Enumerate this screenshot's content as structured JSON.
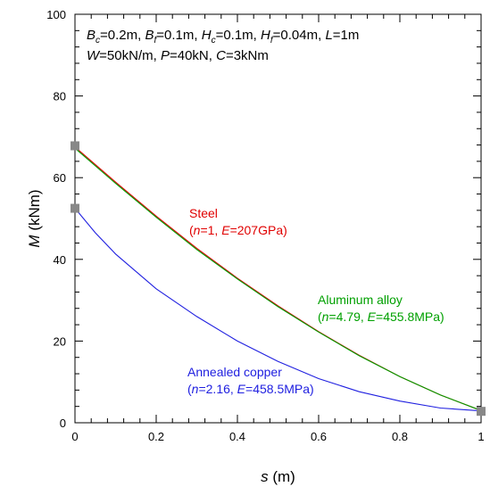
{
  "chart_data": {
    "type": "line",
    "xlabel": {
      "symbol": "s",
      "unit": "(m)"
    },
    "ylabel": {
      "symbol": "M",
      "unit": "(kNm)"
    },
    "xlim": [
      0,
      1
    ],
    "ylim": [
      0,
      100
    ],
    "x_ticks": [
      0,
      0.2,
      0.4,
      0.6,
      0.8,
      1
    ],
    "x_tick_labels": [
      "0",
      "0.2",
      "0.4",
      "0.6",
      "0.8",
      "1"
    ],
    "x_minor_ticks": [
      0.04,
      0.08,
      0.12,
      0.16,
      0.24,
      0.28,
      0.32,
      0.36,
      0.44,
      0.48,
      0.52,
      0.56,
      0.64,
      0.68,
      0.72,
      0.76,
      0.84,
      0.88,
      0.92,
      0.96
    ],
    "y_ticks": [
      0,
      20,
      40,
      60,
      80,
      100
    ],
    "y_tick_labels": [
      "0",
      "20",
      "40",
      "60",
      "80",
      "100"
    ],
    "y_minor_ticks": [
      4,
      8,
      12,
      16,
      24,
      28,
      32,
      36,
      44,
      48,
      52,
      56,
      64,
      68,
      72,
      76,
      84,
      88,
      92,
      96
    ],
    "grid": false,
    "params_line1": [
      {
        "t": "B",
        "s": "c"
      },
      {
        "t": "=0.2m, "
      },
      {
        "t": "B",
        "s": "f"
      },
      {
        "t": "=0.1m, "
      },
      {
        "t": "H",
        "s": "c"
      },
      {
        "t": "=0.1m, "
      },
      {
        "t": "H",
        "s": "f"
      },
      {
        "t": "=0.04m, "
      },
      {
        "t": "L",
        "i": true
      },
      {
        "t": "=1m"
      }
    ],
    "params_line2": [
      {
        "t": "W",
        "i": true
      },
      {
        "t": "=50kN/m, "
      },
      {
        "t": "P",
        "i": true
      },
      {
        "t": "=40kN, "
      },
      {
        "t": "C",
        "i": true
      },
      {
        "t": "=3kNm"
      }
    ],
    "series": [
      {
        "color": "#e00000",
        "label_line1": "Steel",
        "label_line2": [
          {
            "t": "("
          },
          {
            "t": "n",
            "i": true
          },
          {
            "t": "=1, "
          },
          {
            "t": "E",
            "i": true
          },
          {
            "t": "=207GPa)"
          }
        ],
        "x": [
          0,
          0.1,
          0.2,
          0.3,
          0.4,
          0.5,
          0.6,
          0.7,
          0.8,
          0.9,
          1.0
        ],
        "y": [
          67.5,
          58.9,
          50.6,
          42.7,
          35.4,
          28.6,
          22.3,
          16.5,
          11.3,
          6.8,
          3.0
        ]
      },
      {
        "color": "#00a000",
        "label_line1": "Aluminum alloy",
        "label_line2": [
          {
            "t": "("
          },
          {
            "t": "n",
            "i": true
          },
          {
            "t": "=4.79, "
          },
          {
            "t": "E",
            "i": true
          },
          {
            "t": "=455.8MPa)"
          }
        ],
        "x": [
          0,
          0.1,
          0.2,
          0.3,
          0.4,
          0.5,
          0.6,
          0.7,
          0.8,
          0.9,
          1.0
        ],
        "y": [
          67.2,
          58.6,
          50.3,
          42.4,
          35.2,
          28.4,
          22.2,
          16.4,
          11.3,
          6.8,
          3.0
        ]
      },
      {
        "color": "#2020e0",
        "label_line1": "Annealed copper",
        "label_line2": [
          {
            "t": "("
          },
          {
            "t": "n",
            "i": true
          },
          {
            "t": "=2.16, "
          },
          {
            "t": "E",
            "i": true
          },
          {
            "t": "=458.5MPa)"
          }
        ],
        "x": [
          0,
          0.05,
          0.1,
          0.2,
          0.3,
          0.4,
          0.5,
          0.6,
          0.7,
          0.8,
          0.9,
          1.0
        ],
        "y": [
          52.5,
          46.5,
          41.3,
          32.8,
          26.0,
          20.0,
          15.0,
          10.8,
          7.6,
          5.3,
          3.6,
          2.9
        ]
      }
    ],
    "markers": [
      {
        "x": 0,
        "y": 67.8
      },
      {
        "x": 0,
        "y": 52.5
      },
      {
        "x": 1,
        "y": 2.8
      }
    ],
    "marker_color": "#888888"
  }
}
